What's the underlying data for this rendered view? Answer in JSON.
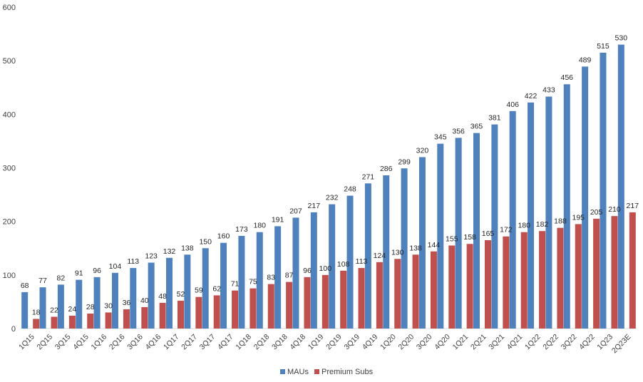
{
  "chart_data": {
    "type": "bar",
    "title": "",
    "xlabel": "",
    "ylabel": "",
    "ylim": [
      0,
      600
    ],
    "yticks": [
      0,
      100,
      200,
      300,
      400,
      500,
      600
    ],
    "grid": false,
    "legend_position": "bottom-center",
    "categories": [
      "1Q15",
      "2Q15",
      "3Q15",
      "4Q15",
      "1Q16",
      "2Q16",
      "3Q16",
      "4Q16",
      "1Q17",
      "2Q17",
      "3Q17",
      "4Q17",
      "1Q18",
      "2Q18",
      "3Q18",
      "4Q18",
      "1Q19",
      "2Q19",
      "3Q19",
      "4Q19",
      "1Q20",
      "2Q20",
      "3Q20",
      "4Q20",
      "1Q21",
      "2Q21",
      "3Q21",
      "4Q21",
      "1Q22",
      "2Q22",
      "3Q22",
      "4Q22",
      "1Q23",
      "2Q23E"
    ],
    "series": [
      {
        "name": "MAUs",
        "color": "#4f81bd",
        "values": [
          68,
          77,
          82,
          91,
          96,
          104,
          113,
          123,
          132,
          138,
          150,
          160,
          173,
          180,
          191,
          207,
          217,
          232,
          248,
          271,
          286,
          299,
          320,
          345,
          356,
          365,
          381,
          406,
          422,
          433,
          456,
          489,
          515,
          530
        ]
      },
      {
        "name": "Premium Subs",
        "color": "#c0504d",
        "values": [
          18,
          22,
          24,
          28,
          30,
          36,
          40,
          48,
          52,
          59,
          62,
          71,
          75,
          83,
          87,
          96,
          100,
          108,
          113,
          124,
          130,
          138,
          144,
          155,
          158,
          165,
          172,
          180,
          182,
          188,
          195,
          205,
          210,
          217
        ]
      }
    ]
  }
}
